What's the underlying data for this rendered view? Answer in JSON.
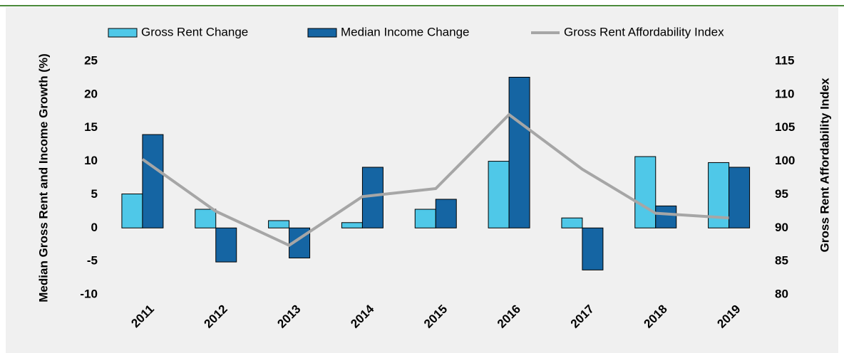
{
  "chart_data": {
    "type": "bar",
    "categories": [
      "2011",
      "2012",
      "2013",
      "2014",
      "2015",
      "2016",
      "2017",
      "2018",
      "2019"
    ],
    "series": [
      {
        "name": "Gross Rent Change",
        "color": "#4fc8e8",
        "values": [
          5.1,
          2.8,
          1.1,
          0.8,
          2.8,
          10.0,
          1.5,
          10.7,
          9.8
        ]
      },
      {
        "name": "Median Income Change",
        "color": "#1565a3",
        "values": [
          14.0,
          -5.1,
          -4.5,
          9.1,
          4.3,
          22.6,
          -6.3,
          3.3,
          9.1
        ]
      },
      {
        "name": "Gross Rent Affordability Index",
        "type": "line",
        "axis": "y2",
        "color": "#a6a6a6",
        "values": [
          100.3,
          92.5,
          87.4,
          94.7,
          95.9,
          107.0,
          98.8,
          92.2,
          91.5
        ]
      }
    ],
    "ylabel": "Median Gross Rent and Income Growth (%)",
    "y2label": "Gross Rent Affordability Index",
    "ylim": [
      -10,
      25
    ],
    "yticks": [
      -10,
      -5,
      0,
      5,
      10,
      15,
      20,
      25
    ],
    "y2lim": [
      80,
      115
    ],
    "y2ticks": [
      80,
      85,
      90,
      95,
      100,
      105,
      110,
      115
    ],
    "grid": false,
    "legend": "top"
  }
}
